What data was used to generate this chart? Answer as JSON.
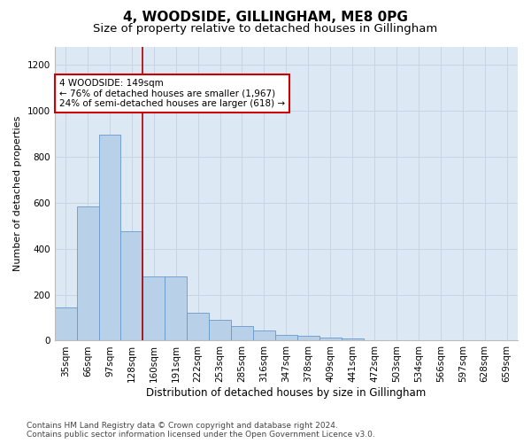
{
  "title": "4, WOODSIDE, GILLINGHAM, ME8 0PG",
  "subtitle": "Size of property relative to detached houses in Gillingham",
  "xlabel": "Distribution of detached houses by size in Gillingham",
  "ylabel": "Number of detached properties",
  "categories": [
    "35sqm",
    "66sqm",
    "97sqm",
    "128sqm",
    "160sqm",
    "191sqm",
    "222sqm",
    "253sqm",
    "285sqm",
    "316sqm",
    "347sqm",
    "378sqm",
    "409sqm",
    "441sqm",
    "472sqm",
    "503sqm",
    "534sqm",
    "566sqm",
    "597sqm",
    "628sqm",
    "659sqm"
  ],
  "values": [
    145,
    585,
    895,
    475,
    280,
    280,
    120,
    90,
    65,
    45,
    25,
    20,
    15,
    8,
    0,
    0,
    0,
    0,
    0,
    0,
    0
  ],
  "bar_color": "#b8d0e8",
  "bar_edge_color": "#6699cc",
  "grid_color": "#c8d4e4",
  "background_color": "#dce8f4",
  "vline_x_index": 3,
  "vline_color": "#aa0000",
  "annotation_text": "4 WOODSIDE: 149sqm\n← 76% of detached houses are smaller (1,967)\n24% of semi-detached houses are larger (618) →",
  "annotation_box_facecolor": "#ffffff",
  "annotation_box_edgecolor": "#cc0000",
  "ylim": [
    0,
    1280
  ],
  "yticks": [
    0,
    200,
    400,
    600,
    800,
    1000,
    1200
  ],
  "footnote": "Contains HM Land Registry data © Crown copyright and database right 2024.\nContains public sector information licensed under the Open Government Licence v3.0.",
  "title_fontsize": 11,
  "subtitle_fontsize": 9.5,
  "xlabel_fontsize": 8.5,
  "ylabel_fontsize": 8,
  "tick_fontsize": 7.5,
  "annot_fontsize": 7.5,
  "footnote_fontsize": 6.5
}
